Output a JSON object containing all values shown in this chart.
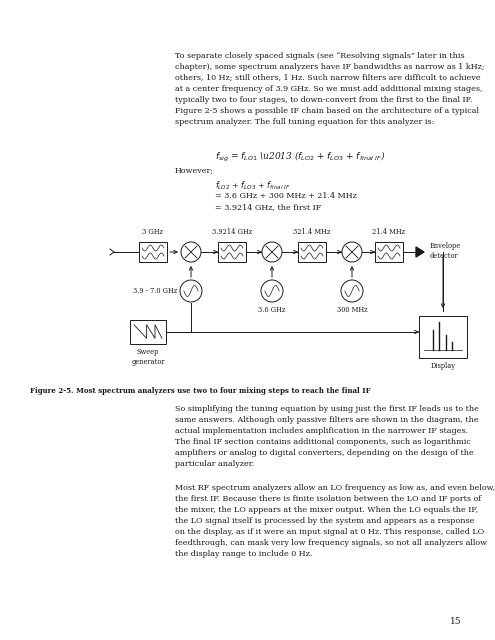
{
  "bg_color": "#ffffff",
  "text_color": "#1a1a1a",
  "page_number": "15",
  "top_paragraph": "To separate closely spaced signals (see “Resolving signals” later in this\nchapter), some spectrum analyzers have IF bandwidths as narrow as 1 kHz;\nothers, 10 Hz; still others, 1 Hz. Such narrow filters are difficult to achieve\nat a center frequency of 3.9 GHz. So we must add additional mixing stages,\ntypically two to four stages, to down-convert from the first to the final IF.\nFigure 2-5 shows a possible IF chain based on the architecture of a typical\nspectrum analyzer. The full tuning equation for this analyzer is:",
  "figure_caption": "Figure 2-5. Most spectrum analyzers use two to four mixing steps to reach the final IF",
  "bottom_para1": "So simplifying the tuning equation by using just the first IF leads us to the\nsame answers. Although only passive filters are shown in the diagram, the\nactual implementation includes amplification in the narrower IF stages.\nThe final IF section contains additional components, such as logarithmic\namplifiers or analog to digital converters, depending on the design of the\nparticular analyzer.",
  "bottom_para2": "Most RF spectrum analyzers allow an LO frequency as low as, and even below,\nthe first IF. Because there is finite isolation between the LO and IF ports of\nthe mixer, the LO appears at the mixer output. When the LO equals the IF,\nthe LO signal itself is processed by the system and appears as a response\non the display, as if it were an input signal at 0 Hz. This response, called LO\nfeedthrough, can mask very low frequency signals, so not all analyzers allow\nthe display range to include 0 Hz."
}
